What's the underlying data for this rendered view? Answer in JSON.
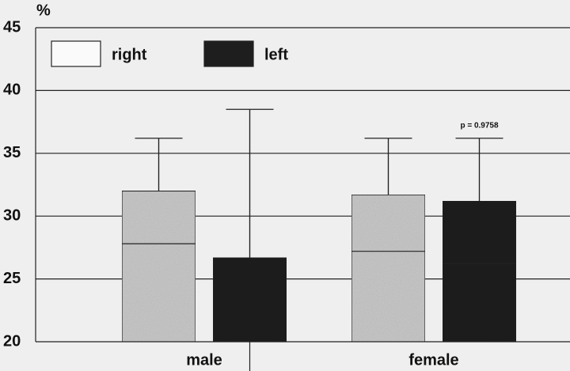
{
  "chart_data": {
    "type": "bar",
    "y_label": "%",
    "categories": [
      "male",
      "female"
    ],
    "series": [
      {
        "name": "right",
        "color": "#c8c8c8",
        "values": [
          32.0,
          31.7
        ],
        "errors": [
          4.2,
          4.5
        ]
      },
      {
        "name": "left",
        "color": "#1e1e1e",
        "values": [
          26.7,
          31.2
        ],
        "errors": [
          11.8,
          5.0
        ]
      }
    ],
    "annotation": "p = 0.9758",
    "ylim": [
      20,
      45
    ],
    "yticks": [
      20,
      25,
      30,
      35,
      40,
      45
    ],
    "grid": true,
    "legend": "top-left"
  }
}
